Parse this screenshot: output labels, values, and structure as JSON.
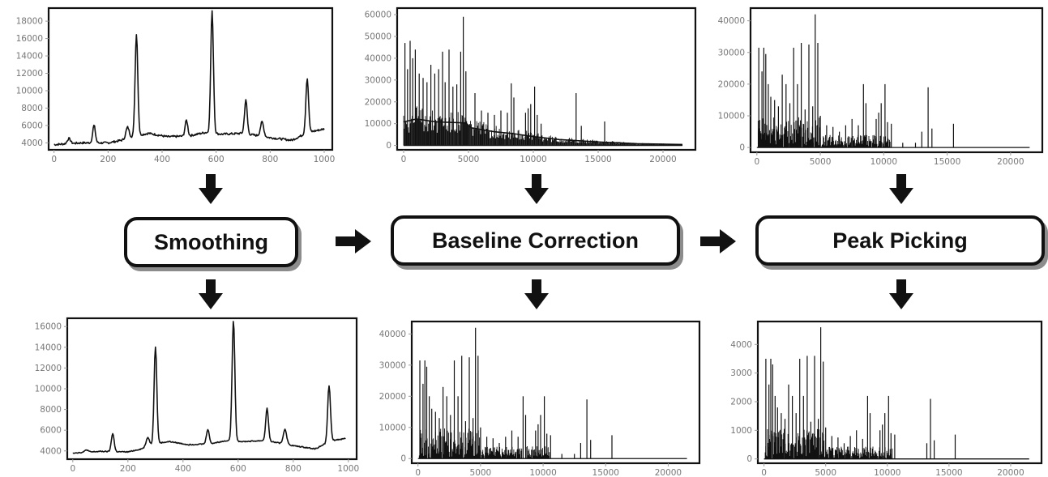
{
  "steps": [
    {
      "label": "Smoothing"
    },
    {
      "label": "Baseline Correction"
    },
    {
      "label": "Peak Picking"
    }
  ],
  "chart_data": [
    {
      "type": "line",
      "stage": "raw",
      "xlim": [
        -20,
        1030
      ],
      "ylim": [
        3200,
        19500
      ],
      "xticks": [
        0,
        200,
        400,
        600,
        800,
        1000
      ],
      "yticks": [
        4000,
        6000,
        8000,
        10000,
        12000,
        14000,
        16000,
        18000
      ],
      "baseline": [
        [
          0,
          3800
        ],
        [
          100,
          4000
        ],
        [
          200,
          4000
        ],
        [
          250,
          4300
        ],
        [
          300,
          4800
        ],
        [
          350,
          5100
        ],
        [
          420,
          4700
        ],
        [
          500,
          4800
        ],
        [
          560,
          5200
        ],
        [
          620,
          5000
        ],
        [
          700,
          5100
        ],
        [
          800,
          4600
        ],
        [
          880,
          4300
        ],
        [
          940,
          5200
        ],
        [
          1000,
          5600
        ]
      ],
      "peaks": [
        [
          55,
          4500,
          6
        ],
        [
          148,
          6000,
          5
        ],
        [
          272,
          5800,
          6
        ],
        [
          305,
          16500,
          5
        ],
        [
          490,
          6600,
          5
        ],
        [
          585,
          19100,
          5
        ],
        [
          710,
          8900,
          5
        ],
        [
          770,
          6400,
          6
        ],
        [
          937,
          11400,
          5
        ]
      ]
    },
    {
      "type": "bar",
      "stage": "raw",
      "xlim": [
        -500,
        22500
      ],
      "ylim": [
        -2000,
        63000
      ],
      "xticks": [
        0,
        5000,
        10000,
        15000,
        20000
      ],
      "yticks": [
        0,
        10000,
        20000,
        30000,
        40000,
        50000,
        60000
      ],
      "baseline": [
        [
          0,
          12000
        ],
        [
          1000,
          13500
        ],
        [
          2500,
          12000
        ],
        [
          4800,
          11500
        ],
        [
          5200,
          9000
        ],
        [
          7000,
          7000
        ],
        [
          8500,
          6000
        ],
        [
          10000,
          4500
        ],
        [
          12000,
          3000
        ],
        [
          15000,
          1800
        ],
        [
          18000,
          900
        ],
        [
          21500,
          500
        ]
      ],
      "peaks": [
        [
          100,
          47000
        ],
        [
          300,
          35000
        ],
        [
          500,
          48000
        ],
        [
          700,
          40000
        ],
        [
          900,
          44000
        ],
        [
          1200,
          33000
        ],
        [
          1500,
          31000
        ],
        [
          1800,
          29000
        ],
        [
          2100,
          37000
        ],
        [
          2400,
          33000
        ],
        [
          2700,
          35000
        ],
        [
          3000,
          43000
        ],
        [
          3200,
          29000
        ],
        [
          3500,
          44000
        ],
        [
          3800,
          27000
        ],
        [
          4100,
          28000
        ],
        [
          4400,
          43000
        ],
        [
          4600,
          59000
        ],
        [
          4800,
          34000
        ],
        [
          5500,
          24000
        ],
        [
          6000,
          16000
        ],
        [
          6500,
          15000
        ],
        [
          7000,
          14000
        ],
        [
          7500,
          16000
        ],
        [
          8000,
          15000
        ],
        [
          8300,
          28500
        ],
        [
          8500,
          22000
        ],
        [
          9400,
          15000
        ],
        [
          9600,
          17000
        ],
        [
          9800,
          19000
        ],
        [
          10100,
          27000
        ],
        [
          10300,
          14000
        ],
        [
          10600,
          10000
        ],
        [
          13300,
          24000
        ],
        [
          13700,
          9000
        ],
        [
          15500,
          11000
        ]
      ]
    },
    {
      "type": "bar",
      "stage": "raw",
      "xlim": [
        -500,
        22500
      ],
      "ylim": [
        -1500,
        44000
      ],
      "xticks": [
        0,
        5000,
        10000,
        15000,
        20000
      ],
      "yticks": [
        0,
        10000,
        20000,
        30000,
        40000
      ],
      "peaks": [
        [
          150,
          31500
        ],
        [
          400,
          24000
        ],
        [
          550,
          31500
        ],
        [
          700,
          29500
        ],
        [
          900,
          20000
        ],
        [
          1100,
          16000
        ],
        [
          1400,
          15000
        ],
        [
          1700,
          13000
        ],
        [
          2000,
          23000
        ],
        [
          2300,
          20000
        ],
        [
          2600,
          14000
        ],
        [
          2900,
          31500
        ],
        [
          3200,
          20000
        ],
        [
          3500,
          33000
        ],
        [
          3800,
          12000
        ],
        [
          4100,
          32500
        ],
        [
          4400,
          13000
        ],
        [
          4600,
          42000
        ],
        [
          4800,
          33000
        ],
        [
          5000,
          10000
        ],
        [
          5500,
          7000
        ],
        [
          6000,
          6500
        ],
        [
          6500,
          5000
        ],
        [
          7000,
          7000
        ],
        [
          7500,
          9000
        ],
        [
          8000,
          7000
        ],
        [
          8400,
          20000
        ],
        [
          8600,
          14000
        ],
        [
          9400,
          9000
        ],
        [
          9600,
          11000
        ],
        [
          9800,
          14000
        ],
        [
          10100,
          20000
        ],
        [
          10300,
          8000
        ],
        [
          10600,
          7500
        ],
        [
          11500,
          1500
        ],
        [
          12500,
          1500
        ],
        [
          13000,
          5000
        ],
        [
          13500,
          19000
        ],
        [
          13800,
          6000
        ],
        [
          15500,
          7500
        ]
      ]
    },
    {
      "type": "line",
      "stage": "processed",
      "xlim": [
        -20,
        1030
      ],
      "ylim": [
        3200,
        16800
      ],
      "xticks": [
        0,
        200,
        400,
        600,
        800,
        1000
      ],
      "yticks": [
        4000,
        6000,
        8000,
        10000,
        12000,
        14000,
        16000
      ],
      "baseline": [
        [
          0,
          3800
        ],
        [
          100,
          3950
        ],
        [
          200,
          3900
        ],
        [
          250,
          4200
        ],
        [
          300,
          4700
        ],
        [
          350,
          4900
        ],
        [
          420,
          4600
        ],
        [
          500,
          4700
        ],
        [
          560,
          5000
        ],
        [
          620,
          4900
        ],
        [
          700,
          5000
        ],
        [
          800,
          4500
        ],
        [
          880,
          4200
        ],
        [
          940,
          5000
        ],
        [
          990,
          5200
        ]
      ],
      "peaks": [
        [
          50,
          4100,
          6
        ],
        [
          145,
          5700,
          5
        ],
        [
          272,
          5300,
          6
        ],
        [
          300,
          14000,
          5
        ],
        [
          490,
          6100,
          5
        ],
        [
          583,
          16600,
          5
        ],
        [
          705,
          8100,
          5
        ],
        [
          770,
          6100,
          6
        ],
        [
          930,
          10300,
          5
        ]
      ]
    },
    {
      "type": "bar",
      "stage": "processed",
      "xlim": [
        -500,
        22500
      ],
      "ylim": [
        -1500,
        44000
      ],
      "xticks": [
        0,
        5000,
        10000,
        15000,
        20000
      ],
      "yticks": [
        0,
        10000,
        20000,
        30000,
        40000
      ],
      "peaks": [
        [
          150,
          31500
        ],
        [
          400,
          24000
        ],
        [
          550,
          31500
        ],
        [
          700,
          29500
        ],
        [
          900,
          20000
        ],
        [
          1100,
          16000
        ],
        [
          1400,
          15000
        ],
        [
          1700,
          13000
        ],
        [
          2000,
          23000
        ],
        [
          2300,
          20000
        ],
        [
          2600,
          14000
        ],
        [
          2900,
          31500
        ],
        [
          3200,
          20000
        ],
        [
          3500,
          33000
        ],
        [
          3800,
          12000
        ],
        [
          4100,
          32500
        ],
        [
          4400,
          13000
        ],
        [
          4600,
          42000
        ],
        [
          4800,
          33000
        ],
        [
          5000,
          10000
        ],
        [
          5500,
          7000
        ],
        [
          6000,
          6500
        ],
        [
          6500,
          5000
        ],
        [
          7000,
          7000
        ],
        [
          7500,
          9000
        ],
        [
          8000,
          7000
        ],
        [
          8400,
          20000
        ],
        [
          8600,
          14000
        ],
        [
          9400,
          9000
        ],
        [
          9600,
          11000
        ],
        [
          9800,
          14000
        ],
        [
          10100,
          20000
        ],
        [
          10300,
          8000
        ],
        [
          10600,
          7500
        ],
        [
          11500,
          1500
        ],
        [
          12500,
          1500
        ],
        [
          13000,
          5000
        ],
        [
          13500,
          19000
        ],
        [
          13800,
          6000
        ],
        [
          15500,
          7500
        ]
      ]
    },
    {
      "type": "bar",
      "stage": "processed",
      "xlim": [
        -500,
        22500
      ],
      "ylim": [
        -150,
        4800
      ],
      "xticks": [
        0,
        5000,
        10000,
        15000,
        20000
      ],
      "yticks": [
        0,
        1000,
        2000,
        3000,
        4000
      ],
      "peaks": [
        [
          150,
          3500
        ],
        [
          400,
          2600
        ],
        [
          550,
          3500
        ],
        [
          700,
          3300
        ],
        [
          900,
          2200
        ],
        [
          1100,
          1800
        ],
        [
          1400,
          1600
        ],
        [
          1700,
          1400
        ],
        [
          2000,
          2600
        ],
        [
          2300,
          2200
        ],
        [
          2600,
          1600
        ],
        [
          2900,
          3500
        ],
        [
          3200,
          2200
        ],
        [
          3500,
          3600
        ],
        [
          3800,
          1300
        ],
        [
          4100,
          3600
        ],
        [
          4400,
          1400
        ],
        [
          4600,
          4600
        ],
        [
          4800,
          3400
        ],
        [
          5000,
          1100
        ],
        [
          5500,
          800
        ],
        [
          6000,
          750
        ],
        [
          6500,
          550
        ],
        [
          7000,
          800
        ],
        [
          7500,
          1000
        ],
        [
          8000,
          700
        ],
        [
          8400,
          2200
        ],
        [
          8600,
          1600
        ],
        [
          9400,
          1000
        ],
        [
          9600,
          1200
        ],
        [
          9800,
          1600
        ],
        [
          10100,
          2200
        ],
        [
          10300,
          900
        ],
        [
          10600,
          850
        ],
        [
          13200,
          550
        ],
        [
          13500,
          2100
        ],
        [
          13800,
          650
        ],
        [
          15500,
          850
        ]
      ]
    }
  ]
}
